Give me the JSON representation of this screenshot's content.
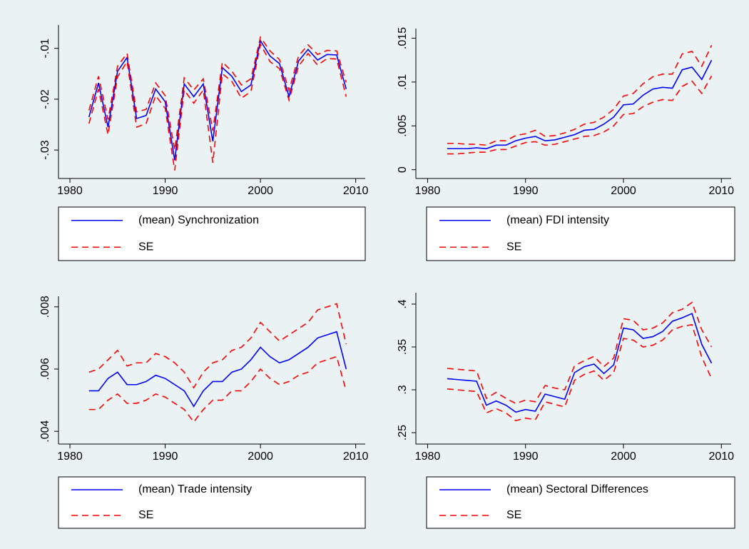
{
  "chart_data": [
    {
      "type": "line",
      "x": [
        1982,
        1983,
        1984,
        1985,
        1986,
        1987,
        1988,
        1989,
        1990,
        1991,
        1992,
        1993,
        1994,
        1995,
        1996,
        1997,
        1998,
        1999,
        2000,
        2001,
        2002,
        2003,
        2004,
        2005,
        2006,
        2007,
        2008,
        2009
      ],
      "series": [
        {
          "name": "(mean) Synchronization",
          "color": "#0000ff",
          "dashed": false,
          "values": [
            -0.0235,
            -0.0168,
            -0.0255,
            -0.0145,
            -0.0118,
            -0.0238,
            -0.0232,
            -0.018,
            -0.0205,
            -0.032,
            -0.017,
            -0.0195,
            -0.017,
            -0.0283,
            -0.0138,
            -0.0155,
            -0.0185,
            -0.0172,
            -0.0085,
            -0.0115,
            -0.013,
            -0.0195,
            -0.0125,
            -0.0102,
            -0.0123,
            -0.0112,
            -0.0113,
            -0.018
          ]
        },
        {
          "name": "SE",
          "color": "#ff0000",
          "dashed": true,
          "upper": [
            -0.0222,
            -0.0155,
            -0.024,
            -0.0135,
            -0.011,
            -0.0225,
            -0.022,
            -0.0168,
            -0.0193,
            -0.03,
            -0.0158,
            -0.0182,
            -0.016,
            -0.0262,
            -0.0127,
            -0.0145,
            -0.0172,
            -0.016,
            -0.0078,
            -0.0105,
            -0.0122,
            -0.0183,
            -0.0115,
            -0.0093,
            -0.0112,
            -0.0104,
            -0.0105,
            -0.0167
          ],
          "lower": [
            -0.0248,
            -0.018,
            -0.027,
            -0.0156,
            -0.0126,
            -0.0255,
            -0.0248,
            -0.0193,
            -0.0218,
            -0.034,
            -0.0182,
            -0.0208,
            -0.0182,
            -0.0325,
            -0.015,
            -0.0165,
            -0.0198,
            -0.0185,
            -0.0092,
            -0.0126,
            -0.014,
            -0.0202,
            -0.0135,
            -0.011,
            -0.0133,
            -0.012,
            -0.0121,
            -0.0195
          ]
        }
      ],
      "xlim": [
        1978.8,
        2011
      ],
      "xticks": [
        1980,
        1990,
        2000,
        2010
      ],
      "ylim": [
        -0.0356,
        -0.0054
      ],
      "yticks": [
        {
          "value": -0.03,
          "label": "-.03"
        },
        {
          "value": -0.02,
          "label": "-.02"
        },
        {
          "value": -0.01,
          "label": "-.01"
        }
      ]
    },
    {
      "type": "line",
      "x": [
        1982,
        1983,
        1984,
        1985,
        1986,
        1987,
        1988,
        1989,
        1990,
        1991,
        1992,
        1993,
        1994,
        1995,
        1996,
        1997,
        1998,
        1999,
        2000,
        2001,
        2002,
        2003,
        2004,
        2005,
        2006,
        2007,
        2008,
        2009
      ],
      "series": [
        {
          "name": "(mean) FDI intensity",
          "color": "#0000ff",
          "dashed": false,
          "values": [
            0.0024,
            0.0024,
            0.0024,
            0.0025,
            0.0024,
            0.0028,
            0.0028,
            0.0033,
            0.0036,
            0.0038,
            0.0033,
            0.0034,
            0.0037,
            0.004,
            0.0045,
            0.0046,
            0.0052,
            0.006,
            0.0074,
            0.0075,
            0.0085,
            0.0092,
            0.0094,
            0.0093,
            0.0114,
            0.0117,
            0.0103,
            0.0125
          ]
        },
        {
          "name": "SE",
          "color": "#ff0000",
          "dashed": true,
          "upper": [
            0.003,
            0.003,
            0.0029,
            0.0029,
            0.0028,
            0.0033,
            0.0033,
            0.0039,
            0.0041,
            0.0045,
            0.0038,
            0.0039,
            0.0042,
            0.0046,
            0.0052,
            0.0054,
            0.006,
            0.0069,
            0.0084,
            0.0087,
            0.0098,
            0.0106,
            0.0109,
            0.0109,
            0.0132,
            0.0135,
            0.0118,
            0.0142
          ],
          "lower": [
            0.0018,
            0.0018,
            0.0019,
            0.002,
            0.002,
            0.0023,
            0.0023,
            0.0027,
            0.0031,
            0.0032,
            0.0028,
            0.0029,
            0.0032,
            0.0035,
            0.0038,
            0.0039,
            0.0043,
            0.005,
            0.0063,
            0.0064,
            0.0072,
            0.0077,
            0.008,
            0.0079,
            0.0095,
            0.0101,
            0.0087,
            0.0107
          ]
        }
      ],
      "xlim": [
        1978.8,
        2011
      ],
      "xticks": [
        1980,
        1990,
        2000,
        2010
      ],
      "ylim": [
        -0.001,
        0.0161
      ],
      "yticks": [
        0,
        {
          "value": 0.005,
          "label": ".005"
        },
        {
          "value": 0.01,
          "label": ".01"
        },
        {
          "value": 0.015,
          "label": ".015"
        }
      ]
    },
    {
      "type": "line",
      "x": [
        1982,
        1983,
        1984,
        1985,
        1986,
        1987,
        1988,
        1989,
        1990,
        1991,
        1992,
        1993,
        1994,
        1995,
        1996,
        1997,
        1998,
        1999,
        2000,
        2001,
        2002,
        2003,
        2004,
        2005,
        2006,
        2007,
        2008,
        2009
      ],
      "series": [
        {
          "name": "(mean) Trade intensity",
          "color": "#0000ff",
          "dashed": false,
          "values": [
            0.0053,
            0.0053,
            0.0057,
            0.0059,
            0.0055,
            0.0055,
            0.0056,
            0.0058,
            0.0057,
            0.0055,
            0.0053,
            0.0048,
            0.0053,
            0.0056,
            0.0056,
            0.0059,
            0.006,
            0.0063,
            0.0067,
            0.0064,
            0.0062,
            0.0063,
            0.0065,
            0.0067,
            0.007,
            0.0071,
            0.0072,
            0.006
          ]
        },
        {
          "name": "SE",
          "color": "#ff0000",
          "dashed": true,
          "upper": [
            0.0059,
            0.006,
            0.0063,
            0.0066,
            0.0061,
            0.0062,
            0.0062,
            0.0065,
            0.0064,
            0.0062,
            0.0059,
            0.0054,
            0.0059,
            0.0062,
            0.0063,
            0.0066,
            0.0067,
            0.007,
            0.0075,
            0.0072,
            0.0069,
            0.0071,
            0.0073,
            0.0075,
            0.0079,
            0.008,
            0.0081,
            0.0068
          ],
          "lower": [
            0.0047,
            0.0047,
            0.005,
            0.0052,
            0.0049,
            0.0049,
            0.005,
            0.0052,
            0.0051,
            0.0049,
            0.0047,
            0.0043,
            0.0047,
            0.005,
            0.005,
            0.0053,
            0.0053,
            0.0056,
            0.006,
            0.0057,
            0.0055,
            0.0056,
            0.0058,
            0.0059,
            0.0062,
            0.0063,
            0.0064,
            0.0053
          ]
        }
      ],
      "xlim": [
        1978.8,
        2011
      ],
      "xticks": [
        1980,
        1990,
        2000,
        2010
      ],
      "ylim": [
        0.00359,
        0.00834
      ],
      "yticks": [
        {
          "value": 0.004,
          "label": ".004"
        },
        {
          "value": 0.006,
          "label": ".006"
        },
        {
          "value": 0.008,
          "label": ".008"
        }
      ]
    },
    {
      "type": "line",
      "x": [
        1982,
        1983,
        1984,
        1985,
        1986,
        1987,
        1988,
        1989,
        1990,
        1991,
        1992,
        1993,
        1994,
        1995,
        1996,
        1997,
        1998,
        1999,
        2000,
        2001,
        2002,
        2003,
        2004,
        2005,
        2006,
        2007,
        2008,
        2009
      ],
      "series": [
        {
          "name": "(mean) Sectoral Differences",
          "color": "#0000ff",
          "dashed": false,
          "values": [
            0.313,
            0.312,
            0.311,
            0.31,
            0.282,
            0.287,
            0.282,
            0.274,
            0.277,
            0.275,
            0.295,
            0.292,
            0.289,
            0.32,
            0.327,
            0.33,
            0.319,
            0.329,
            0.372,
            0.37,
            0.36,
            0.362,
            0.368,
            0.38,
            0.384,
            0.389,
            0.353,
            0.331
          ]
        },
        {
          "name": "SE",
          "color": "#ff0000",
          "dashed": true,
          "upper": [
            0.325,
            0.324,
            0.323,
            0.322,
            0.29,
            0.297,
            0.29,
            0.284,
            0.288,
            0.286,
            0.305,
            0.302,
            0.3,
            0.328,
            0.334,
            0.339,
            0.327,
            0.337,
            0.383,
            0.381,
            0.37,
            0.372,
            0.378,
            0.39,
            0.394,
            0.402,
            0.37,
            0.35
          ],
          "lower": [
            0.301,
            0.3,
            0.299,
            0.298,
            0.273,
            0.278,
            0.273,
            0.264,
            0.267,
            0.265,
            0.286,
            0.283,
            0.28,
            0.311,
            0.318,
            0.322,
            0.311,
            0.32,
            0.36,
            0.358,
            0.35,
            0.352,
            0.358,
            0.37,
            0.374,
            0.376,
            0.338,
            0.313
          ]
        }
      ],
      "xlim": [
        1978.8,
        2011
      ],
      "xticks": [
        1980,
        1990,
        2000,
        2010
      ],
      "ylim": [
        0.2367,
        0.4133
      ],
      "yticks": [
        {
          "value": 0.25,
          "label": ".25"
        },
        {
          "value": 0.3,
          "label": ".3"
        },
        {
          "value": 0.35,
          "label": ".35"
        },
        {
          "value": 0.4,
          "label": ".4"
        }
      ]
    }
  ]
}
